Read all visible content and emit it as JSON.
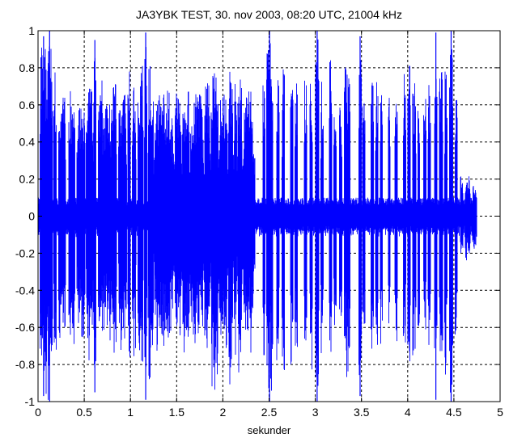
{
  "chart_data": {
    "type": "area",
    "title": "JA3YBK TEST, 30. nov 2003, 08:20 UTC, 21004 kHz",
    "xlabel": "sekunder",
    "ylabel": "",
    "xlim": [
      0,
      5
    ],
    "ylim": [
      -1,
      1
    ],
    "x_ticks": [
      0,
      0.5,
      1,
      1.5,
      2,
      2.5,
      3,
      3.5,
      4,
      4.5,
      5
    ],
    "x_tick_labels": [
      "0",
      "0.5",
      "1",
      "1.5",
      "2",
      "2.5",
      "3",
      "3.5",
      "4",
      "4.5",
      "5"
    ],
    "y_ticks": [
      1,
      0.8,
      0.6,
      0.4,
      0.2,
      0,
      -0.2,
      -0.4,
      -0.6,
      -0.8,
      -1
    ],
    "y_tick_labels": [
      "1",
      "0.8",
      "0.6",
      "0.4",
      "0.2",
      "0",
      "-0.2",
      "-0.4",
      "-0.6",
      "-0.8",
      "-1"
    ],
    "grid": true,
    "line_color": "#0000ff",
    "signal_end": 4.75,
    "noise_floor": 0.1,
    "series": [
      {
        "envelope": [
          [
            0.02,
            0.08,
            0.92
          ],
          [
            0.1,
            0.05,
            0.95
          ],
          [
            0.13,
            0.03,
            0.75
          ],
          [
            0.17,
            0.03,
            0.8
          ],
          [
            0.22,
            0.08,
            0.66
          ],
          [
            0.33,
            0.07,
            0.7
          ],
          [
            0.42,
            0.09,
            0.64
          ],
          [
            0.52,
            0.08,
            0.7
          ],
          [
            0.6,
            0.03,
            0.9
          ],
          [
            0.65,
            0.05,
            0.76
          ],
          [
            0.69,
            0.11,
            0.62
          ],
          [
            0.79,
            0.06,
            0.73
          ],
          [
            0.87,
            0.09,
            0.68
          ],
          [
            0.97,
            0.03,
            0.8
          ],
          [
            1.02,
            0.04,
            0.72
          ],
          [
            1.08,
            0.06,
            0.84
          ],
          [
            1.15,
            0.03,
            0.94
          ],
          [
            1.19,
            0.06,
            0.82
          ],
          [
            1.26,
            0.2,
            0.68
          ],
          [
            1.48,
            0.07,
            0.68
          ],
          [
            1.56,
            0.08,
            0.72
          ],
          [
            1.65,
            0.14,
            0.66
          ],
          [
            1.8,
            0.06,
            0.72
          ],
          [
            1.87,
            0.08,
            0.86
          ],
          [
            1.96,
            0.09,
            0.7
          ],
          [
            2.06,
            0.05,
            0.84
          ],
          [
            2.12,
            0.03,
            0.73
          ],
          [
            2.16,
            0.05,
            0.76
          ],
          [
            2.22,
            0.11,
            0.68
          ],
          [
            2.43,
            0.03,
            0.73
          ],
          [
            2.47,
            0.07,
            0.96
          ],
          [
            2.58,
            0.03,
            0.78
          ],
          [
            2.64,
            0.03,
            0.82
          ],
          [
            2.73,
            0.03,
            0.78
          ],
          [
            2.78,
            0.03,
            0.76
          ],
          [
            2.88,
            0.03,
            0.74
          ],
          [
            2.94,
            0.03,
            0.78
          ],
          [
            3.0,
            0.04,
            0.96
          ],
          [
            3.06,
            0.03,
            0.74
          ],
          [
            3.15,
            0.03,
            0.86
          ],
          [
            3.2,
            0.03,
            0.72
          ],
          [
            3.26,
            0.03,
            0.7
          ],
          [
            3.31,
            0.07,
            0.82
          ],
          [
            3.47,
            0.03,
            0.92
          ],
          [
            3.51,
            0.03,
            0.76
          ],
          [
            3.6,
            0.03,
            0.74
          ],
          [
            3.65,
            0.03,
            0.77
          ],
          [
            3.7,
            0.03,
            0.72
          ],
          [
            3.79,
            0.02,
            0.68
          ],
          [
            3.86,
            0.03,
            0.7
          ],
          [
            3.95,
            0.03,
            0.78
          ],
          [
            4.0,
            0.03,
            0.87
          ],
          [
            4.05,
            0.04,
            0.74
          ],
          [
            4.11,
            0.02,
            0.76
          ],
          [
            4.17,
            0.03,
            0.72
          ],
          [
            4.22,
            0.03,
            0.78
          ],
          [
            4.29,
            0.03,
            0.94
          ],
          [
            4.34,
            0.04,
            0.8
          ],
          [
            4.4,
            0.03,
            0.82
          ],
          [
            4.45,
            0.04,
            0.98
          ],
          [
            4.51,
            0.03,
            0.74
          ],
          [
            4.57,
            0.03,
            0.4
          ],
          [
            4.62,
            0.06,
            0.25
          ],
          [
            4.7,
            0.05,
            0.18
          ]
        ]
      }
    ]
  }
}
